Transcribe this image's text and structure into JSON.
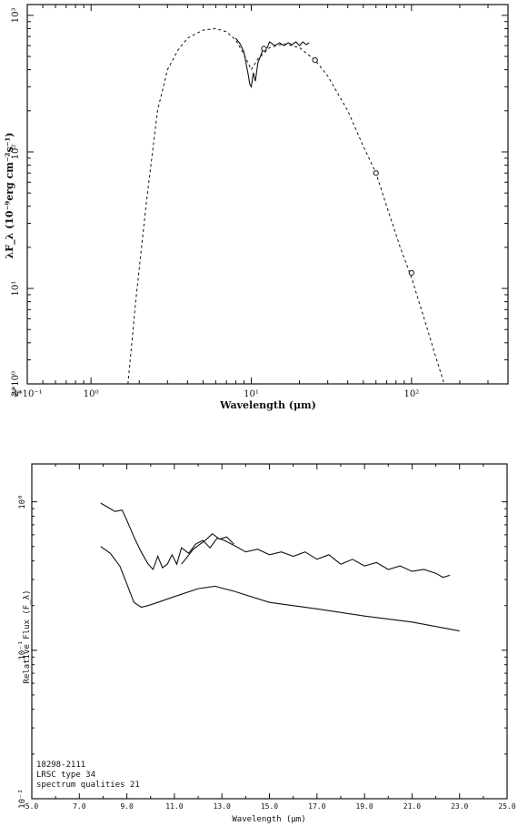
{
  "chart_data": [
    {
      "type": "line",
      "xlabel": "Wavelength (μm)",
      "ylabel": "λF_λ (10⁻⁹erg cm⁻²s⁻¹)",
      "xscale": "log",
      "yscale": "log",
      "xlim": [
        0.4,
        400
      ],
      "ylim": [
        0.2,
        120
      ],
      "x_tick_labels": [
        "4*10⁻¹",
        "10⁰",
        "10¹",
        "10²"
      ],
      "x_tick_values": [
        0.4,
        1,
        10,
        100
      ],
      "y_tick_labels": [
        "2*10⁰",
        "10¹",
        "10²",
        "10³"
      ],
      "y_tick_values": [
        0.2,
        1,
        10,
        100
      ],
      "grid": false,
      "series": [
        {
          "style": "dashed",
          "x": [
            1.7,
            1.9,
            2.2,
            2.6,
            3.0,
            3.5,
            4.0,
            5.0,
            6.0,
            7.0,
            8.0,
            9.0,
            10.0,
            11.0,
            13.0,
            16.0,
            20.0,
            25.0,
            30.0,
            40.0,
            50.0,
            60.0,
            70.0,
            85.0,
            100.0,
            120.0,
            140.0,
            160.0
          ],
          "y": [
            0.2,
            0.8,
            4.0,
            20.0,
            40.0,
            56.0,
            68.0,
            78.0,
            80.0,
            76.0,
            66.0,
            52.0,
            40.0,
            48.0,
            58.0,
            62.0,
            58.0,
            47.0,
            36.0,
            20.0,
            11.0,
            7.0,
            4.0,
            2.0,
            1.2,
            0.6,
            0.33,
            0.2
          ]
        },
        {
          "style": "solid",
          "x": [
            8.0,
            8.5,
            9.0,
            9.3,
            9.6,
            9.8,
            10.0,
            10.3,
            10.6,
            11.0,
            11.4,
            11.8,
            12.2,
            12.6,
            13.0,
            14.0,
            15.0,
            16.0,
            17.0,
            18.0,
            19.0,
            20.0,
            21.0,
            22.0,
            23.0
          ],
          "y": [
            68.0,
            62.0,
            54.0,
            44.0,
            36.0,
            31.0,
            30.0,
            38.0,
            33.0,
            45.0,
            50.0,
            56.0,
            57.0,
            58.0,
            64.0,
            60.0,
            63.0,
            60.0,
            63.0,
            61.0,
            64.0,
            60.0,
            64.0,
            61.0,
            63.0
          ]
        }
      ],
      "photometry_points": {
        "x": [
          12.0,
          25.0,
          60.0,
          100.0
        ],
        "y": [
          57.0,
          47.0,
          7.0,
          1.3
        ]
      }
    },
    {
      "type": "line",
      "xlabel": "Wavelength (μm)",
      "ylabel": "Relative Flux (F_λ)",
      "yscale": "log",
      "xlim": [
        5.0,
        25.0
      ],
      "ylim": [
        0.01,
        1.8
      ],
      "x_tick_labels": [
        "5.0",
        "7.0",
        "9.0",
        "11.0",
        "13.0",
        "15.0",
        "17.0",
        "19.0",
        "21.0",
        "23.0",
        "25.0"
      ],
      "x_tick_values": [
        5,
        7,
        9,
        11,
        13,
        15,
        17,
        19,
        21,
        23,
        25
      ],
      "y_tick_labels": [
        "10⁰",
        "10⁻¹",
        "10⁻²"
      ],
      "y_tick_values": [
        1,
        0.1,
        0.01
      ],
      "annotations": [
        "18298-2111",
        "LRSC type 34",
        "spectrum qualities 21"
      ],
      "grid": false,
      "series": [
        {
          "style": "solid",
          "x": [
            7.9,
            8.2,
            8.5,
            8.8,
            9.0,
            9.3,
            9.6,
            9.9,
            10.1,
            10.3,
            10.5,
            10.7,
            10.9,
            11.1,
            11.3,
            11.6,
            11.9,
            12.2,
            12.5,
            12.8,
            13.1,
            13.5,
            14.0,
            14.5,
            15.0,
            15.5,
            16.0,
            16.5,
            17.0,
            17.5,
            18.0,
            18.5,
            19.0,
            19.5,
            20.0,
            20.5,
            21.0,
            21.5,
            22.0,
            22.3,
            22.6
          ],
          "y": [
            0.98,
            0.92,
            0.86,
            0.88,
            0.75,
            0.58,
            0.46,
            0.38,
            0.35,
            0.43,
            0.36,
            0.38,
            0.44,
            0.38,
            0.49,
            0.45,
            0.52,
            0.55,
            0.49,
            0.57,
            0.55,
            0.51,
            0.46,
            0.48,
            0.44,
            0.46,
            0.43,
            0.46,
            0.41,
            0.44,
            0.38,
            0.41,
            0.37,
            0.39,
            0.35,
            0.37,
            0.34,
            0.35,
            0.33,
            0.31,
            0.32
          ]
        },
        {
          "style": "solid",
          "x": [
            11.3,
            11.8,
            12.3,
            12.6,
            12.9,
            13.2,
            13.5
          ],
          "y": [
            0.38,
            0.48,
            0.55,
            0.61,
            0.56,
            0.58,
            0.52
          ]
        },
        {
          "style": "solid",
          "x": [
            7.9,
            8.3,
            8.7,
            9.0,
            9.3,
            9.6,
            9.9,
            10.3,
            11.0,
            12.0,
            12.7,
            13.5,
            15.0,
            17.0,
            19.0,
            21.0,
            23.0
          ],
          "y": [
            0.5,
            0.45,
            0.37,
            0.28,
            0.21,
            0.195,
            0.2,
            0.21,
            0.23,
            0.26,
            0.27,
            0.25,
            0.21,
            0.19,
            0.17,
            0.155,
            0.135
          ]
        }
      ]
    }
  ]
}
